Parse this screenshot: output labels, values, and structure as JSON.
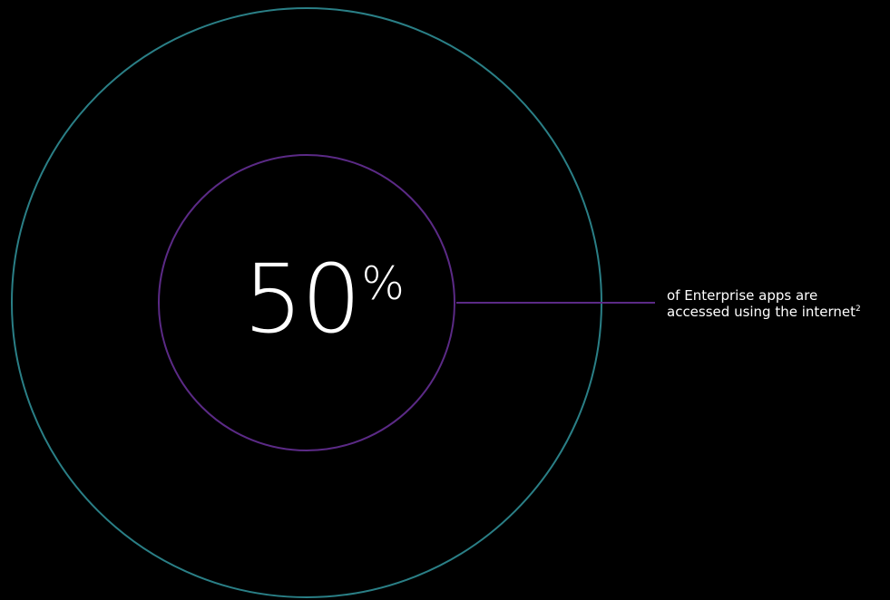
{
  "stat": {
    "value": "50",
    "unit": "%"
  },
  "caption": {
    "line1": "of Enterprise apps are",
    "line2": "accessed using the internet",
    "footnote": "2"
  },
  "colors": {
    "background": "#000000",
    "outer_ring": "#2a7f86",
    "inner_ring": "#5b2a86",
    "leader_line": "#5b2a86",
    "text": "#ffffff"
  }
}
